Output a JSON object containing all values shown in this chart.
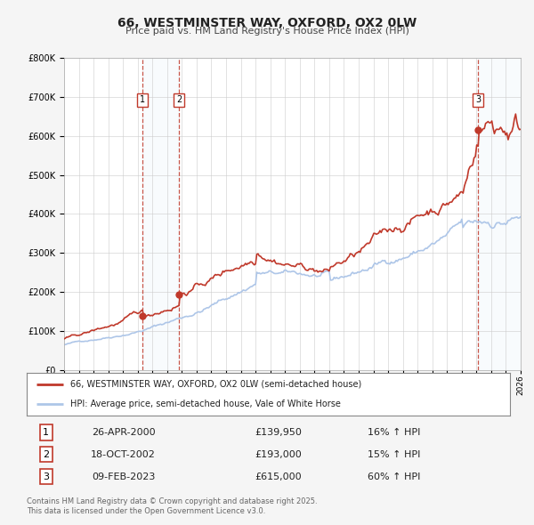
{
  "title": "66, WESTMINSTER WAY, OXFORD, OX2 0LW",
  "subtitle": "Price paid vs. HM Land Registry's House Price Index (HPI)",
  "legend_line1": "66, WESTMINSTER WAY, OXFORD, OX2 0LW (semi-detached house)",
  "legend_line2": "HPI: Average price, semi-detached house, Vale of White Horse",
  "transactions": [
    {
      "num": 1,
      "date": "26-APR-2000",
      "price": 139950,
      "pct": "16%",
      "date_x": 2000.32
    },
    {
      "num": 2,
      "date": "18-OCT-2002",
      "price": 193000,
      "pct": "15%",
      "date_x": 2002.8
    },
    {
      "num": 3,
      "date": "09-FEB-2023",
      "price": 615000,
      "pct": "60%",
      "date_x": 2023.11
    }
  ],
  "footer": "Contains HM Land Registry data © Crown copyright and database right 2025.\nThis data is licensed under the Open Government Licence v3.0.",
  "hpi_color": "#aec6e8",
  "price_color": "#c0392b",
  "background_color": "#f5f5f5",
  "plot_bg_color": "#ffffff",
  "grid_color": "#cccccc",
  "shade_color": "#dce9f7",
  "vline_color": "#c0392b",
  "ylim": [
    0,
    800000
  ],
  "xlim_start": 1995,
  "xlim_end": 2026
}
